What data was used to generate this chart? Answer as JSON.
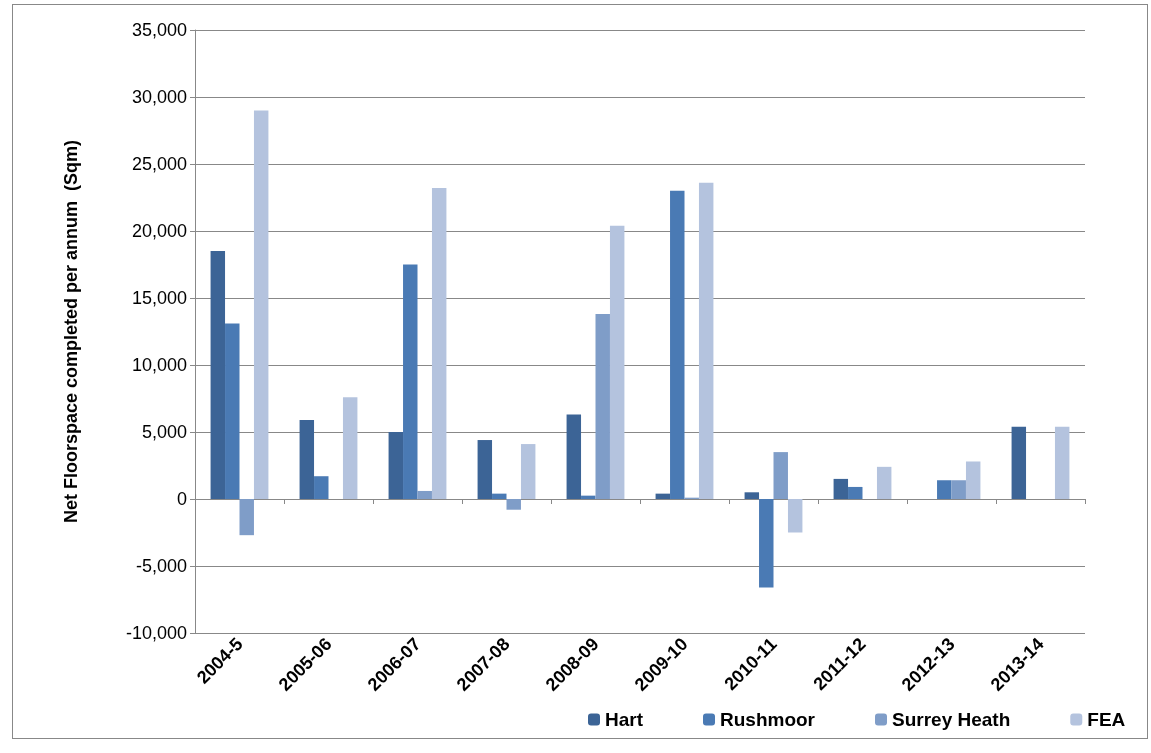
{
  "chart_data": {
    "type": "bar",
    "ylabel": "Net Floorspace completed per annum  (Sqm)",
    "categories": [
      "2004-5",
      "2005-06",
      "2006-07",
      "2007-08",
      "2008-09",
      "2009-10",
      "2010-11",
      "2011-12",
      "2012-13",
      "2013-14"
    ],
    "series": [
      {
        "name": "Hart",
        "color": "#3c6496",
        "values": [
          18500,
          5900,
          5000,
          4400,
          6300,
          400,
          500,
          1500,
          null,
          5400
        ]
      },
      {
        "name": "Rushmoor",
        "color": "#4a7ab4",
        "values": [
          13100,
          1700,
          17500,
          400,
          250,
          23000,
          -6600,
          900,
          1400,
          null
        ]
      },
      {
        "name": "Surrey Heath",
        "color": "#7f9dc8",
        "values": [
          -2700,
          null,
          600,
          -800,
          13800,
          100,
          3500,
          null,
          1400,
          null
        ]
      },
      {
        "name": "FEA",
        "color": "#b4c3de",
        "values": [
          29000,
          7600,
          23200,
          4100,
          20400,
          23600,
          -2500,
          2400,
          2800,
          5400
        ]
      }
    ],
    "ylim": [
      -10000,
      35000
    ],
    "yticks": [
      {
        "value": -10000,
        "label": "-10,000"
      },
      {
        "value": -5000,
        "label": "-5,000"
      },
      {
        "value": 0,
        "label": "0"
      },
      {
        "value": 5000,
        "label": "5,000"
      },
      {
        "value": 10000,
        "label": "10,000"
      },
      {
        "value": 15000,
        "label": "15,000"
      },
      {
        "value": 20000,
        "label": "20,000"
      },
      {
        "value": 25000,
        "label": "25,000"
      },
      {
        "value": 30000,
        "label": "30,000"
      },
      {
        "value": 35000,
        "label": "35,000"
      }
    ],
    "grid": "y",
    "legend": "bottom"
  }
}
